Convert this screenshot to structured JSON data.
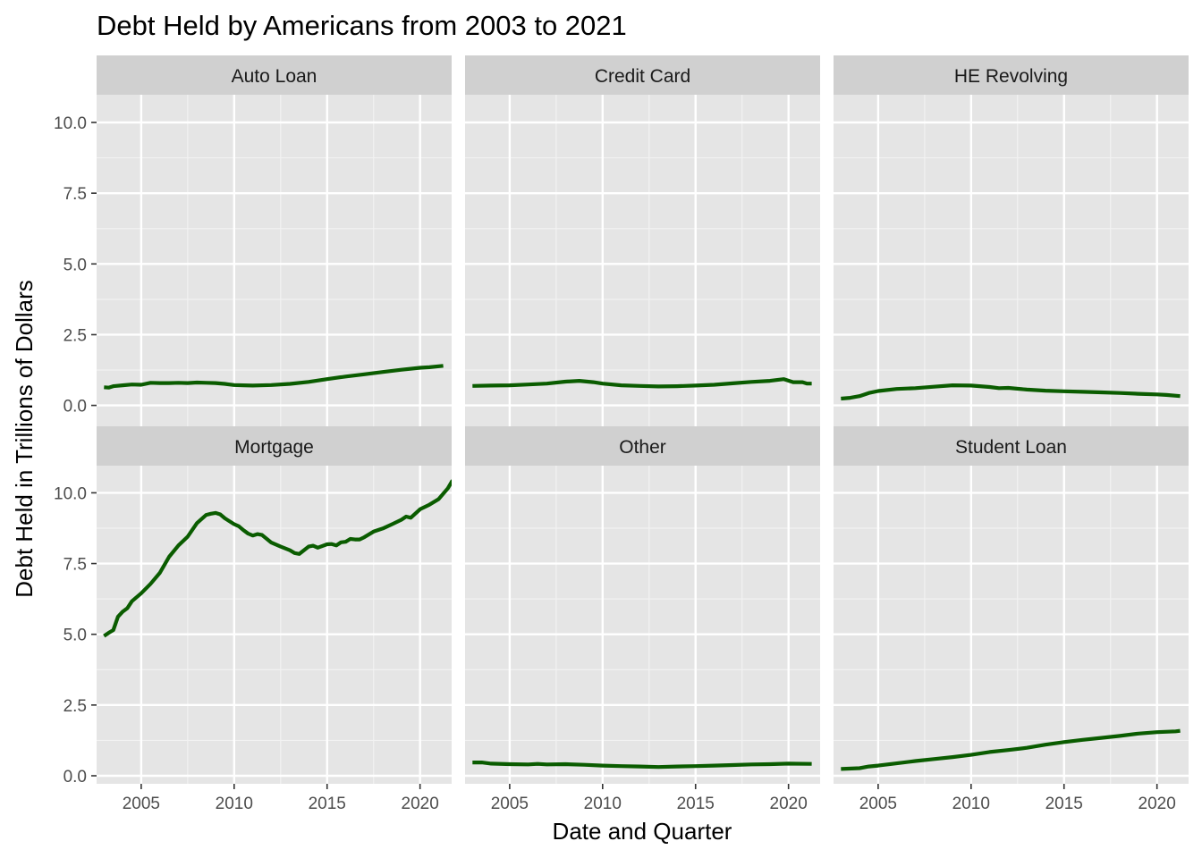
{
  "chart_data": {
    "type": "line",
    "title": "Debt Held by Americans from 2003 to 2021",
    "xlabel": "Date and Quarter",
    "ylabel": "Debt Held in Trillions of Dollars",
    "xlim": [
      2002.6,
      2021.7
    ],
    "ylim": [
      -0.53,
      11.03
    ],
    "x_ticks": [
      2005,
      2010,
      2015,
      2020
    ],
    "y_ticks": [
      0,
      2.5,
      5,
      7.5,
      10
    ],
    "x_tick_labels": [
      "2005",
      "2010",
      "2015",
      "2020"
    ],
    "y_tick_labels": [
      "0.0",
      "2.5",
      "5.0",
      "7.5",
      "10.0"
    ],
    "facet_layout": {
      "rows": 2,
      "cols": 3,
      "shared_axes": true
    },
    "grid": true,
    "line_color": "#0a5c00",
    "panel_background": "#e5e5e5",
    "strip_background": "#d0d0d0",
    "series": [
      {
        "name": "Auto Loan",
        "points": [
          [
            2003.0,
            0.64
          ],
          [
            2003.25,
            0.63
          ],
          [
            2003.5,
            0.68
          ],
          [
            2004.0,
            0.71
          ],
          [
            2004.5,
            0.74
          ],
          [
            2005.0,
            0.73
          ],
          [
            2005.5,
            0.8
          ],
          [
            2006.0,
            0.79
          ],
          [
            2006.5,
            0.79
          ],
          [
            2007.0,
            0.8
          ],
          [
            2007.5,
            0.79
          ],
          [
            2008.0,
            0.81
          ],
          [
            2008.5,
            0.8
          ],
          [
            2009.0,
            0.79
          ],
          [
            2009.5,
            0.76
          ],
          [
            2010.0,
            0.72
          ],
          [
            2010.5,
            0.71
          ],
          [
            2011.0,
            0.7
          ],
          [
            2012.0,
            0.72
          ],
          [
            2013.0,
            0.76
          ],
          [
            2014.0,
            0.83
          ],
          [
            2015.0,
            0.93
          ],
          [
            2016.0,
            1.02
          ],
          [
            2017.0,
            1.1
          ],
          [
            2018.0,
            1.18
          ],
          [
            2019.0,
            1.26
          ],
          [
            2020.0,
            1.33
          ],
          [
            2020.5,
            1.35
          ],
          [
            2021.25,
            1.4
          ]
        ]
      },
      {
        "name": "Credit Card",
        "points": [
          [
            2003.0,
            0.69
          ],
          [
            2004.0,
            0.7
          ],
          [
            2005.0,
            0.71
          ],
          [
            2006.0,
            0.74
          ],
          [
            2007.0,
            0.77
          ],
          [
            2008.0,
            0.84
          ],
          [
            2008.75,
            0.87
          ],
          [
            2009.5,
            0.82
          ],
          [
            2010.0,
            0.77
          ],
          [
            2011.0,
            0.71
          ],
          [
            2012.0,
            0.69
          ],
          [
            2013.0,
            0.67
          ],
          [
            2014.0,
            0.68
          ],
          [
            2015.0,
            0.7
          ],
          [
            2016.0,
            0.73
          ],
          [
            2017.0,
            0.78
          ],
          [
            2018.0,
            0.83
          ],
          [
            2019.0,
            0.87
          ],
          [
            2019.75,
            0.93
          ],
          [
            2020.25,
            0.82
          ],
          [
            2020.75,
            0.82
          ],
          [
            2021.0,
            0.77
          ],
          [
            2021.25,
            0.77
          ]
        ]
      },
      {
        "name": "HE Revolving",
        "points": [
          [
            2003.0,
            0.24
          ],
          [
            2003.5,
            0.27
          ],
          [
            2004.0,
            0.33
          ],
          [
            2004.5,
            0.44
          ],
          [
            2005.0,
            0.51
          ],
          [
            2006.0,
            0.58
          ],
          [
            2007.0,
            0.61
          ],
          [
            2008.0,
            0.66
          ],
          [
            2009.0,
            0.71
          ],
          [
            2010.0,
            0.7
          ],
          [
            2011.0,
            0.65
          ],
          [
            2011.5,
            0.61
          ],
          [
            2012.0,
            0.62
          ],
          [
            2013.0,
            0.56
          ],
          [
            2014.0,
            0.52
          ],
          [
            2015.0,
            0.5
          ],
          [
            2016.0,
            0.48
          ],
          [
            2017.0,
            0.46
          ],
          [
            2018.0,
            0.44
          ],
          [
            2019.0,
            0.41
          ],
          [
            2020.0,
            0.39
          ],
          [
            2020.5,
            0.37
          ],
          [
            2021.25,
            0.33
          ]
        ]
      },
      {
        "name": "Mortgage",
        "points": [
          [
            2003.0,
            4.94
          ],
          [
            2003.25,
            5.05
          ],
          [
            2003.5,
            5.15
          ],
          [
            2003.75,
            5.62
          ],
          [
            2004.0,
            5.8
          ],
          [
            2004.25,
            5.92
          ],
          [
            2004.5,
            6.17
          ],
          [
            2005.0,
            6.45
          ],
          [
            2005.5,
            6.78
          ],
          [
            2006.0,
            7.17
          ],
          [
            2006.5,
            7.74
          ],
          [
            2007.0,
            8.14
          ],
          [
            2007.5,
            8.45
          ],
          [
            2008.0,
            8.93
          ],
          [
            2008.5,
            9.22
          ],
          [
            2008.75,
            9.26
          ],
          [
            2009.0,
            9.29
          ],
          [
            2009.25,
            9.24
          ],
          [
            2009.5,
            9.1
          ],
          [
            2010.0,
            8.89
          ],
          [
            2010.25,
            8.82
          ],
          [
            2010.5,
            8.68
          ],
          [
            2010.75,
            8.56
          ],
          [
            2011.0,
            8.49
          ],
          [
            2011.25,
            8.54
          ],
          [
            2011.5,
            8.51
          ],
          [
            2012.0,
            8.24
          ],
          [
            2012.5,
            8.1
          ],
          [
            2013.0,
            7.97
          ],
          [
            2013.25,
            7.87
          ],
          [
            2013.5,
            7.84
          ],
          [
            2014.0,
            8.1
          ],
          [
            2014.25,
            8.13
          ],
          [
            2014.5,
            8.06
          ],
          [
            2015.0,
            8.18
          ],
          [
            2015.25,
            8.19
          ],
          [
            2015.5,
            8.14
          ],
          [
            2015.75,
            8.25
          ],
          [
            2016.0,
            8.27
          ],
          [
            2016.25,
            8.37
          ],
          [
            2016.5,
            8.35
          ],
          [
            2016.75,
            8.35
          ],
          [
            2017.0,
            8.43
          ],
          [
            2017.5,
            8.63
          ],
          [
            2018.0,
            8.74
          ],
          [
            2018.5,
            8.89
          ],
          [
            2019.0,
            9.05
          ],
          [
            2019.25,
            9.16
          ],
          [
            2019.5,
            9.12
          ],
          [
            2020.0,
            9.42
          ],
          [
            2020.5,
            9.58
          ],
          [
            2021.0,
            9.78
          ],
          [
            2021.5,
            10.16
          ],
          [
            2021.75,
            10.44
          ]
        ]
      },
      {
        "name": "Other",
        "points": [
          [
            2003.0,
            0.47
          ],
          [
            2003.5,
            0.47
          ],
          [
            2004.0,
            0.43
          ],
          [
            2005.0,
            0.41
          ],
          [
            2006.0,
            0.4
          ],
          [
            2006.5,
            0.42
          ],
          [
            2007.0,
            0.4
          ],
          [
            2008.0,
            0.41
          ],
          [
            2009.0,
            0.39
          ],
          [
            2010.0,
            0.36
          ],
          [
            2011.0,
            0.34
          ],
          [
            2012.0,
            0.33
          ],
          [
            2013.0,
            0.31
          ],
          [
            2014.0,
            0.33
          ],
          [
            2015.0,
            0.34
          ],
          [
            2016.0,
            0.36
          ],
          [
            2017.0,
            0.38
          ],
          [
            2018.0,
            0.4
          ],
          [
            2019.0,
            0.41
          ],
          [
            2020.0,
            0.43
          ],
          [
            2021.25,
            0.42
          ]
        ]
      },
      {
        "name": "Student Loan",
        "points": [
          [
            2003.0,
            0.24
          ],
          [
            2004.0,
            0.27
          ],
          [
            2004.5,
            0.33
          ],
          [
            2005.0,
            0.36
          ],
          [
            2006.0,
            0.44
          ],
          [
            2007.0,
            0.52
          ],
          [
            2008.0,
            0.59
          ],
          [
            2009.0,
            0.66
          ],
          [
            2010.0,
            0.74
          ],
          [
            2011.0,
            0.84
          ],
          [
            2012.0,
            0.91
          ],
          [
            2013.0,
            0.99
          ],
          [
            2014.0,
            1.1
          ],
          [
            2015.0,
            1.19
          ],
          [
            2016.0,
            1.27
          ],
          [
            2017.0,
            1.34
          ],
          [
            2018.0,
            1.41
          ],
          [
            2019.0,
            1.49
          ],
          [
            2020.0,
            1.54
          ],
          [
            2021.0,
            1.57
          ],
          [
            2021.25,
            1.59
          ]
        ]
      }
    ]
  }
}
